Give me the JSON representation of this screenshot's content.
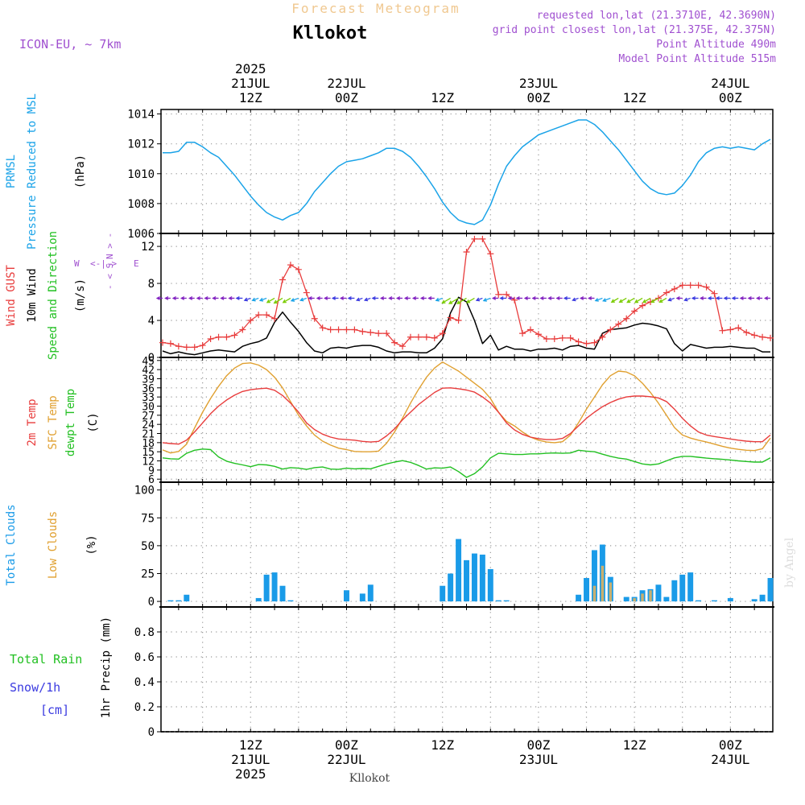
{
  "header": {
    "product_title": "Forecast Meteogram",
    "location": "Kllokot",
    "model": "ICON-EU, ~ 7km",
    "requested": "requested lon,lat (21.3710E, 42.3690N)",
    "grid_point": "grid point closest lon,lat (21.375E, 42.375N)",
    "point_altitude": "Point Altitude 490m",
    "model_altitude": "Model Point Altitude 515m",
    "footer_location": "Kllokot",
    "watermark": "by Angel"
  },
  "colors": {
    "pressure": "#1aa3e8",
    "gust": "#e83c3c",
    "wind": "#000000",
    "temp2m": "#e83c3c",
    "sfc_temp": "#e0a030",
    "dewpt": "#22c022",
    "total_cloud": "#1a9be8",
    "low_cloud": "#c8b070",
    "rain": "#22c022",
    "snow": "#3a3ae0",
    "header_purple": "#a050d0",
    "title_faint": "#f0c890"
  },
  "time_axis": {
    "top_labels": [
      {
        "t": 12,
        "lines": [
          "2025",
          "21JUL",
          "12Z"
        ]
      },
      {
        "t": 24,
        "lines": [
          "22JUL",
          "00Z"
        ]
      },
      {
        "t": 36,
        "lines": [
          "12Z"
        ]
      },
      {
        "t": 48,
        "lines": [
          "23JUL",
          "00Z"
        ]
      },
      {
        "t": 60,
        "lines": [
          "12Z"
        ]
      },
      {
        "t": 72,
        "lines": [
          "24JUL",
          "00Z"
        ]
      }
    ],
    "bottom_labels": [
      {
        "t": 12,
        "lines": [
          "12Z",
          "21JUL",
          "2025"
        ]
      },
      {
        "t": 24,
        "lines": [
          "00Z",
          "22JUL"
        ]
      },
      {
        "t": 36,
        "lines": [
          "12Z"
        ]
      },
      {
        "t": 48,
        "lines": [
          "00Z",
          "23JUL"
        ]
      },
      {
        "t": 60,
        "lines": [
          "12Z"
        ]
      },
      {
        "t": 72,
        "lines": [
          "00Z",
          "24JUL"
        ]
      }
    ],
    "t_range": [
      0.8,
      77.3
    ]
  },
  "chart_data": [
    {
      "type": "line",
      "panel": "pressure",
      "ylabel_lines": [
        {
          "text": "PRMSL",
          "color": "#1aa3e8"
        },
        {
          "text": "Pressure Reduced to MSL",
          "color": "#1aa3e8"
        },
        {
          "text": "(hPa)",
          "color": "#000000"
        }
      ],
      "ylim": [
        1006,
        1014.3
      ],
      "yticks": [
        1006,
        1008,
        1010,
        1012,
        1014
      ],
      "x": [
        1,
        2,
        3,
        4,
        5,
        6,
        7,
        8,
        9,
        10,
        11,
        12,
        13,
        14,
        15,
        16,
        17,
        18,
        19,
        20,
        21,
        22,
        23,
        24,
        25,
        26,
        27,
        28,
        29,
        30,
        31,
        32,
        33,
        34,
        35,
        36,
        37,
        38,
        39,
        40,
        41,
        42,
        43,
        44,
        45,
        46,
        47,
        48,
        49,
        50,
        51,
        52,
        53,
        54,
        55,
        56,
        57,
        58,
        59,
        60,
        61,
        62,
        63,
        64,
        65,
        66,
        67,
        68,
        69,
        70,
        71,
        72,
        73,
        74,
        75,
        76,
        77
      ],
      "series": [
        {
          "values": [
            1011.4,
            1011.4,
            1011.5,
            1012.1,
            1012.1,
            1011.8,
            1011.4,
            1011.1,
            1010.5,
            1009.9,
            1009.2,
            1008.5,
            1007.9,
            1007.4,
            1007.1,
            1006.9,
            1007.2,
            1007.4,
            1008.0,
            1008.8,
            1009.4,
            1010.0,
            1010.5,
            1010.8,
            1010.9,
            1011.0,
            1011.2,
            1011.4,
            1011.7,
            1011.7,
            1011.5,
            1011.1,
            1010.5,
            1009.8,
            1009.0,
            1008.1,
            1007.4,
            1006.9,
            1006.7,
            1006.6,
            1006.9,
            1007.9,
            1009.3,
            1010.5,
            1011.2,
            1011.8,
            1012.2,
            1012.6,
            1012.8,
            1013.0,
            1013.2,
            1013.4,
            1013.6,
            1013.6,
            1013.3,
            1012.8,
            1012.2,
            1011.6,
            1010.9,
            1010.2,
            1009.5,
            1009.0,
            1008.7,
            1008.6,
            1008.7,
            1009.2,
            1009.9,
            1010.8,
            1011.4,
            1011.7,
            1011.8,
            1011.7,
            1011.8,
            1011.7,
            1011.6,
            1012.0,
            1012.3
          ]
        }
      ]
    },
    {
      "type": "line",
      "panel": "wind",
      "ylabel_lines": [
        {
          "text": "Wind GUST",
          "color": "#e83c3c"
        },
        {
          "text": "10m Wind",
          "color": "#000000"
        },
        {
          "text": "Speed and Direction",
          "color": "#22c022"
        },
        {
          "text": "(m/s)",
          "color": "#000000"
        }
      ],
      "compass": {
        "n": "N",
        "s": "S",
        "e": "E",
        "w": "W"
      },
      "ylim": [
        0,
        13.4
      ],
      "yticks": [
        0,
        4,
        8,
        12
      ],
      "x": [
        1,
        2,
        3,
        4,
        5,
        6,
        7,
        8,
        9,
        10,
        11,
        12,
        13,
        14,
        15,
        16,
        17,
        18,
        19,
        20,
        21,
        22,
        23,
        24,
        25,
        26,
        27,
        28,
        29,
        30,
        31,
        32,
        33,
        34,
        35,
        36,
        37,
        38,
        39,
        40,
        41,
        42,
        43,
        44,
        45,
        46,
        47,
        48,
        49,
        50,
        51,
        52,
        53,
        54,
        55,
        56,
        57,
        58,
        59,
        60,
        61,
        62,
        63,
        64,
        65,
        66,
        67,
        68,
        69,
        70,
        71,
        72,
        73,
        74,
        75,
        76,
        77
      ],
      "series": [
        {
          "values": [
            1.6,
            1.5,
            1.2,
            1.1,
            1.1,
            1.3,
            2.0,
            2.2,
            2.2,
            2.4,
            3.0,
            4.0,
            4.6,
            4.6,
            4.2,
            8.4,
            10.0,
            9.5,
            7.0,
            4.2,
            3.2,
            3.0,
            3.0,
            3.0,
            3.0,
            2.8,
            2.7,
            2.6,
            2.6,
            1.6,
            1.2,
            2.2,
            2.2,
            2.2,
            2.1,
            2.6,
            4.3,
            4.0,
            11.4,
            12.8,
            12.8,
            11.2,
            6.8,
            6.8,
            6.2,
            2.6,
            3.0,
            2.5,
            2.0,
            2.0,
            2.1,
            2.1,
            1.7,
            1.5,
            1.6,
            2.2,
            3.0,
            3.6,
            4.2,
            5.0,
            5.6,
            6.0,
            6.4,
            7.0,
            7.4,
            7.8,
            7.8,
            7.8,
            7.6,
            6.9,
            2.9,
            3.0,
            3.2,
            2.7,
            2.4,
            2.2,
            2.1
          ]
        },
        {
          "values": [
            0.7,
            0.4,
            0.6,
            0.4,
            0.3,
            0.5,
            0.7,
            0.8,
            0.7,
            0.6,
            1.2,
            1.5,
            1.7,
            2.1,
            3.8,
            4.9,
            3.8,
            2.8,
            1.6,
            0.7,
            0.5,
            1.0,
            1.1,
            1.0,
            1.2,
            1.3,
            1.3,
            1.1,
            0.7,
            0.5,
            0.6,
            0.6,
            0.5,
            0.5,
            1.0,
            2.0,
            4.8,
            6.5,
            6.0,
            4.0,
            1.5,
            2.4,
            0.8,
            1.2,
            0.9,
            0.9,
            0.7,
            0.9,
            0.9,
            1.0,
            0.8,
            1.2,
            1.3,
            1.0,
            0.9,
            2.6,
            3.0,
            3.1,
            3.2,
            3.5,
            3.7,
            3.6,
            3.4,
            3.1,
            1.5,
            0.7,
            1.4,
            1.2,
            1.0,
            1.1,
            1.1,
            1.2,
            1.1,
            1.0,
            1.0,
            0.6,
            0.6
          ]
        }
      ]
    },
    {
      "type": "line",
      "panel": "temperature",
      "ylabel_lines": [
        {
          "text": "2m Temp",
          "color": "#e83c3c"
        },
        {
          "text": "SFC Temp",
          "color": "#e0a030"
        },
        {
          "text": "dewpt Temp",
          "color": "#22c022"
        },
        {
          "text": "(C)",
          "color": "#000000"
        }
      ],
      "ylim": [
        5,
        46
      ],
      "yticks": [
        6,
        9,
        12,
        15,
        18,
        21,
        24,
        27,
        30,
        33,
        36,
        39,
        42,
        45
      ],
      "x": [
        1,
        2,
        3,
        4,
        5,
        6,
        7,
        8,
        9,
        10,
        11,
        12,
        13,
        14,
        15,
        16,
        17,
        18,
        19,
        20,
        21,
        22,
        23,
        24,
        25,
        26,
        27,
        28,
        29,
        30,
        31,
        32,
        33,
        34,
        35,
        36,
        37,
        38,
        39,
        40,
        41,
        42,
        43,
        44,
        45,
        46,
        47,
        48,
        49,
        50,
        51,
        52,
        53,
        54,
        55,
        56,
        57,
        58,
        59,
        60,
        61,
        62,
        63,
        64,
        65,
        66,
        67,
        68,
        69,
        70,
        71,
        72,
        73,
        74,
        75,
        76,
        77
      ],
      "series": [
        {
          "values": [
            18.0,
            17.7,
            17.5,
            18.8,
            21.5,
            24.5,
            27.5,
            30.0,
            32.0,
            33.6,
            34.8,
            35.4,
            35.7,
            35.9,
            35.2,
            33.5,
            31.0,
            28.0,
            24.5,
            22.3,
            20.8,
            19.8,
            19.2,
            19.0,
            18.8,
            18.4,
            18.2,
            18.4,
            20.2,
            22.5,
            25.5,
            28.0,
            30.5,
            32.5,
            34.5,
            35.9,
            36.0,
            35.7,
            35.3,
            34.6,
            33.0,
            31.0,
            28.0,
            24.5,
            22.2,
            20.7,
            19.8,
            19.3,
            19.0,
            19.0,
            19.4,
            21.0,
            23.5,
            26.0,
            28.0,
            29.8,
            31.2,
            32.3,
            33.0,
            33.3,
            33.3,
            33.1,
            32.7,
            31.5,
            29.0,
            26.0,
            23.5,
            21.5,
            20.5,
            20.0,
            19.6,
            19.2,
            18.8,
            18.5,
            18.3,
            18.3,
            20.5
          ]
        },
        {
          "values": [
            15.6,
            14.6,
            15.1,
            17.5,
            22.8,
            28.0,
            32.5,
            36.5,
            40.0,
            42.5,
            44.0,
            44.2,
            43.5,
            42.0,
            39.5,
            36.0,
            31.5,
            27.0,
            23.5,
            20.5,
            18.5,
            17.2,
            16.2,
            15.7,
            15.1,
            15.0,
            15.0,
            15.2,
            17.8,
            21.5,
            26.0,
            31.0,
            35.5,
            39.5,
            42.5,
            44.5,
            43.0,
            41.5,
            39.5,
            37.5,
            35.5,
            32.5,
            28.0,
            25.0,
            23.5,
            21.5,
            19.8,
            18.8,
            18.2,
            18.0,
            18.3,
            20.5,
            24.5,
            29.0,
            33.0,
            37.0,
            40.0,
            41.5,
            41.2,
            40.0,
            37.5,
            34.5,
            31.0,
            27.0,
            23.0,
            20.5,
            19.5,
            18.8,
            18.2,
            17.5,
            16.8,
            16.2,
            15.8,
            15.5,
            15.4,
            16.0,
            19.5
          ]
        },
        {
          "values": [
            13.0,
            12.7,
            12.6,
            14.5,
            15.5,
            15.9,
            15.7,
            13.3,
            11.9,
            11.2,
            10.7,
            10.1,
            10.8,
            10.7,
            10.2,
            9.3,
            9.8,
            9.6,
            9.2,
            9.8,
            10.0,
            9.3,
            9.2,
            9.6,
            9.4,
            9.5,
            9.4,
            10.2,
            11.0,
            11.6,
            12.1,
            11.5,
            10.5,
            9.3,
            9.7,
            9.6,
            10.0,
            8.5,
            6.6,
            7.8,
            10.0,
            13.0,
            14.5,
            14.3,
            14.1,
            14.1,
            14.3,
            14.3,
            14.5,
            14.6,
            14.5,
            14.6,
            15.5,
            15.2,
            15.0,
            14.2,
            13.5,
            12.9,
            12.6,
            11.8,
            11.0,
            10.7,
            11.0,
            12.0,
            13.0,
            13.5,
            13.5,
            13.2,
            12.9,
            12.7,
            12.5,
            12.3,
            12.0,
            11.8,
            11.6,
            11.6,
            13.0
          ]
        }
      ]
    },
    {
      "type": "bar",
      "panel": "clouds",
      "ylabel_lines": [
        {
          "text": "Total Clouds",
          "color": "#1a9be8"
        },
        {
          "text": "Low Clouds",
          "color": "#e0a030"
        },
        {
          "text": "(%)",
          "color": "#000000"
        }
      ],
      "ylim": [
        -5,
        107
      ],
      "yticks": [
        0,
        25,
        50,
        75,
        100
      ],
      "x": [
        1,
        2,
        3,
        4,
        5,
        6,
        7,
        8,
        9,
        10,
        11,
        12,
        13,
        14,
        15,
        16,
        17,
        18,
        19,
        20,
        21,
        22,
        23,
        24,
        25,
        26,
        27,
        28,
        29,
        30,
        31,
        32,
        33,
        34,
        35,
        36,
        37,
        38,
        39,
        40,
        41,
        42,
        43,
        44,
        45,
        46,
        47,
        48,
        49,
        50,
        51,
        52,
        53,
        54,
        55,
        56,
        57,
        58,
        59,
        60,
        61,
        62,
        63,
        64,
        65,
        66,
        67,
        68,
        69,
        70,
        71,
        72,
        73,
        74,
        75,
        76,
        77
      ],
      "series": [
        {
          "values": [
            0,
            1,
            1,
            6,
            0,
            0,
            0,
            0,
            0,
            0,
            0,
            0,
            3,
            24,
            26,
            14,
            1,
            0,
            0,
            0,
            0,
            0,
            0,
            10,
            0,
            7,
            15,
            0,
            0,
            0,
            0,
            0,
            0,
            0,
            0,
            14,
            25,
            56,
            37,
            43,
            42,
            29,
            1,
            1,
            0,
            0,
            0,
            0,
            0,
            0,
            0,
            0,
            6,
            21,
            46,
            51,
            22,
            0,
            4,
            4,
            10,
            11,
            15,
            4,
            19,
            24,
            26,
            1,
            0,
            1,
            0,
            3,
            0,
            0,
            2,
            6,
            21
          ]
        },
        {
          "values": [
            0,
            0,
            0,
            0,
            0,
            0,
            0,
            0,
            0,
            0,
            0,
            0,
            0,
            0,
            0,
            0,
            0,
            0,
            0,
            0,
            0,
            0,
            0,
            0,
            0,
            0,
            0,
            0,
            0,
            0,
            0,
            0,
            0,
            0,
            0,
            0,
            0,
            0,
            0,
            0,
            0,
            0,
            0,
            0,
            0,
            0,
            0,
            0,
            0,
            0,
            0,
            0,
            0,
            0,
            14,
            32,
            17,
            0,
            0,
            3,
            7,
            10,
            0,
            0,
            0,
            0,
            0,
            0,
            0,
            0,
            0,
            0,
            0,
            0,
            0,
            0,
            0
          ]
        }
      ]
    },
    {
      "type": "bar",
      "panel": "precip",
      "ylabel_lines": [
        {
          "text": "1hr Precip (mm)",
          "color": "#000000"
        }
      ],
      "legend": [
        {
          "text": "Total  Rain",
          "color": "#22c022"
        },
        {
          "text": "Snow/1h",
          "color": "#3a3ae0"
        },
        {
          "text": "[cm]",
          "color": "#3a3ae0"
        }
      ],
      "ylim": [
        0,
        1.0
      ],
      "yticks": [
        0,
        0.2,
        0.4,
        0.6,
        0.8
      ],
      "ytick_labels": [
        "0",
        "0.2",
        "0.4",
        "0.6",
        "0.8"
      ],
      "series": []
    }
  ]
}
